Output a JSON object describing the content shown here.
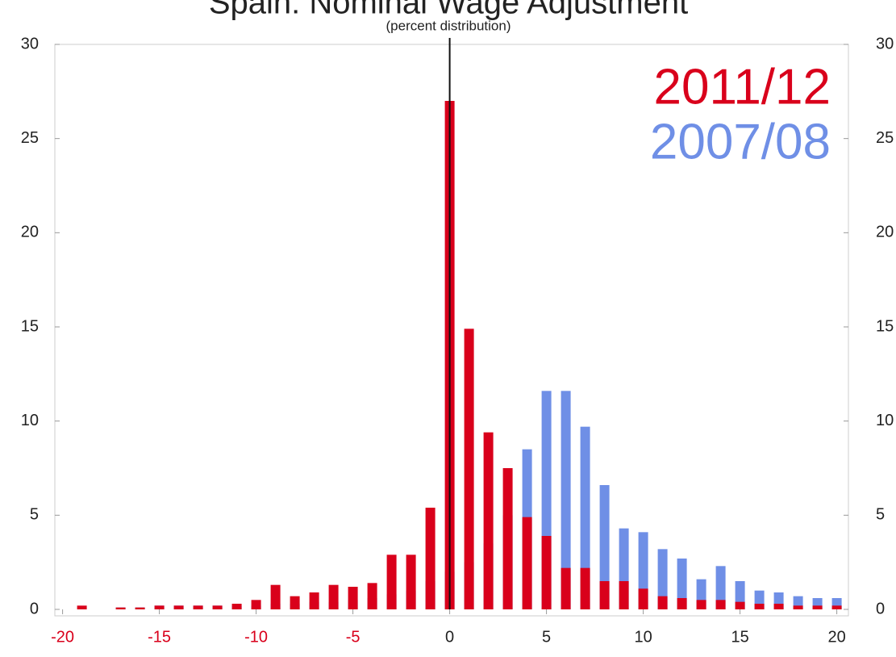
{
  "chart_data": {
    "type": "bar",
    "title": "Spain: Nominal Wage Adjustment",
    "subtitle": "(percent distribution)",
    "x": [
      -19,
      -18,
      -17,
      -16,
      -15,
      -14,
      -13,
      -12,
      -11,
      -10,
      -9,
      -8,
      -7,
      -6,
      -5,
      -4,
      -3,
      -2,
      -1,
      0,
      1,
      2,
      3,
      4,
      5,
      6,
      7,
      8,
      9,
      10,
      11,
      12,
      13,
      14,
      15,
      16,
      17,
      18,
      19,
      20
    ],
    "series": [
      {
        "name": "2007/08",
        "color": "#6f8fe6",
        "values": [
          0,
          0,
          0.1,
          0.1,
          0.2,
          0.2,
          0.2,
          0.2,
          0.2,
          0.2,
          0.3,
          0.3,
          0.4,
          0.4,
          0.5,
          0.6,
          0.8,
          1.0,
          1.5,
          2.0,
          2.5,
          3.5,
          5.0,
          8.5,
          11.6,
          11.6,
          9.7,
          6.6,
          4.3,
          4.1,
          3.2,
          2.7,
          1.6,
          2.3,
          1.5,
          1.0,
          0.9,
          0.7,
          0.6,
          0.6
        ]
      },
      {
        "name": "2011/12",
        "color": "#d9001b",
        "values": [
          0.2,
          0,
          0.1,
          0.1,
          0.2,
          0.2,
          0.2,
          0.2,
          0.3,
          0.5,
          1.3,
          0.7,
          0.9,
          1.3,
          1.2,
          1.4,
          2.9,
          2.9,
          5.4,
          27,
          14.9,
          9.4,
          7.5,
          4.9,
          3.9,
          2.2,
          2.2,
          1.5,
          1.5,
          1.1,
          0.7,
          0.6,
          0.5,
          0.5,
          0.4,
          0.3,
          0.3,
          0.2,
          0.2,
          0.2
        ]
      }
    ],
    "xlim": [
      -20.4,
      20.6
    ],
    "xticks": [
      -20,
      -15,
      -10,
      -5,
      0,
      5,
      10,
      15,
      20
    ],
    "ylim": [
      0,
      30
    ],
    "yticks": [
      0,
      5,
      10,
      15,
      20,
      25,
      30
    ],
    "y2lim": [
      0,
      30
    ],
    "y2ticks": [
      0,
      5,
      10,
      15,
      20,
      25,
      30
    ],
    "negative_tick_color": "#d9001b",
    "zero_line": true
  }
}
